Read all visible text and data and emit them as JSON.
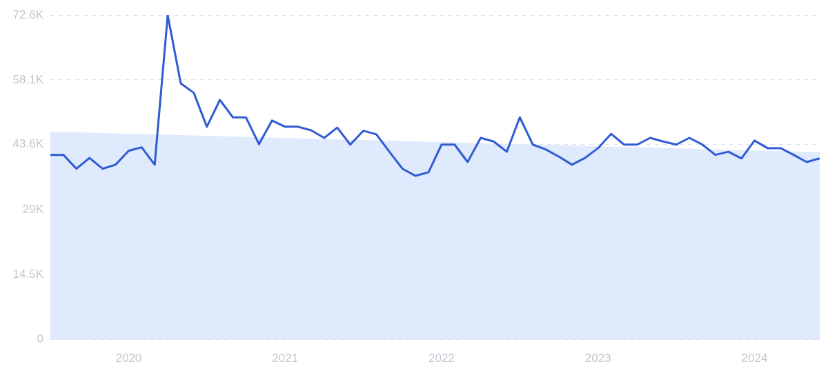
{
  "chart_data": {
    "type": "line",
    "x": [
      "2019-07",
      "2019-08",
      "2019-09",
      "2019-10",
      "2019-11",
      "2019-12",
      "2020-01",
      "2020-02",
      "2020-03",
      "2020-04",
      "2020-05",
      "2020-06",
      "2020-07",
      "2020-08",
      "2020-09",
      "2020-10",
      "2020-11",
      "2020-12",
      "2021-01",
      "2021-02",
      "2021-03",
      "2021-04",
      "2021-05",
      "2021-06",
      "2021-07",
      "2021-08",
      "2021-09",
      "2021-10",
      "2021-11",
      "2021-12",
      "2022-01",
      "2022-02",
      "2022-03",
      "2022-04",
      "2022-05",
      "2022-06",
      "2022-07",
      "2022-08",
      "2022-09",
      "2022-10",
      "2022-11",
      "2022-12",
      "2023-01",
      "2023-02",
      "2023-03",
      "2023-04",
      "2023-05",
      "2023-06",
      "2023-07",
      "2023-08",
      "2023-09",
      "2023-10",
      "2023-11",
      "2023-12",
      "2024-01",
      "2024-02",
      "2024-03",
      "2024-04",
      "2024-05",
      "2024-06"
    ],
    "series": [
      {
        "type": "area",
        "color": "#dfeafc",
        "x": [
          "2019-07",
          "2024-06"
        ],
        "values": [
          46500,
          41900
        ]
      },
      {
        "color": "#2f5bd3",
        "values": [
          41300,
          41300,
          38200,
          40600,
          38200,
          39100,
          42200,
          43000,
          39100,
          72600,
          57300,
          55200,
          47600,
          53600,
          49700,
          49700,
          43700,
          49000,
          47600,
          47600,
          46800,
          45100,
          47400,
          43600,
          46700,
          45900,
          42000,
          38200,
          36600,
          37400,
          43600,
          43600,
          39700,
          45100,
          44300,
          42000,
          49700,
          43600,
          42500,
          40900,
          39100,
          40600,
          42800,
          46000,
          43600,
          43600,
          45100,
          44300,
          43600,
          45100,
          43600,
          41300,
          42000,
          40500,
          44500,
          42800,
          42800,
          41300,
          39700,
          40500
        ]
      }
    ],
    "xlim": [
      "2019-07",
      "2024-06"
    ],
    "xticks": [
      "2020",
      "2021",
      "2022",
      "2023",
      "2024"
    ],
    "ylim": [
      0,
      72600
    ],
    "yticks": [
      0,
      {
        "value": 14500,
        "label": "14.5K"
      },
      {
        "value": 29000,
        "label": "29K"
      },
      {
        "value": 43600,
        "label": "43.6K"
      },
      {
        "value": 58100,
        "label": "58.1K"
      },
      {
        "value": 72600,
        "label": "72.6K"
      }
    ],
    "grid": "y",
    "legend": false,
    "marker": "none",
    "line_style": "solid"
  }
}
